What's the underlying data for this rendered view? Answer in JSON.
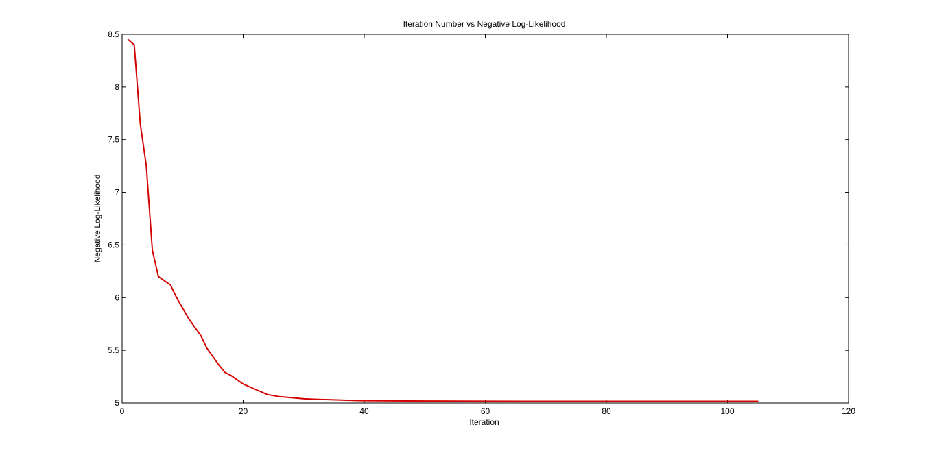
{
  "chart_data": {
    "type": "line",
    "title": "Iteration Number vs Negative Log-Likelihood",
    "xlabel": "Iteration",
    "ylabel": "Negative Log-Likelihood",
    "xlim": [
      0,
      120
    ],
    "ylim": [
      5,
      8.5
    ],
    "xticks": [
      0,
      20,
      40,
      60,
      80,
      100,
      120
    ],
    "yticks": [
      5,
      5.5,
      6,
      6.5,
      7,
      7.5,
      8,
      8.5
    ],
    "xtick_labels": [
      "0",
      "20",
      "40",
      "60",
      "80",
      "100",
      "120"
    ],
    "ytick_labels": [
      "5",
      "5.5",
      "6",
      "6.5",
      "7",
      "7.5",
      "8",
      "8.5"
    ],
    "grid": false,
    "legend": "none",
    "series": [
      {
        "color": "#d40000",
        "x": [
          1,
          2,
          3,
          4,
          5,
          6,
          7,
          8,
          9,
          10,
          11,
          12,
          13,
          14,
          15,
          16,
          17,
          18,
          19,
          20,
          22,
          24,
          26,
          28,
          30,
          32,
          35,
          38,
          40,
          45,
          50,
          55,
          60,
          70,
          80,
          90,
          100,
          105
        ],
        "y": [
          8.45,
          8.4,
          7.65,
          7.25,
          6.45,
          6.2,
          6.16,
          6.12,
          6.0,
          5.9,
          5.8,
          5.72,
          5.64,
          5.52,
          5.44,
          5.36,
          5.29,
          5.26,
          5.22,
          5.18,
          5.13,
          5.08,
          5.06,
          5.05,
          5.04,
          5.035,
          5.03,
          5.025,
          5.022,
          5.02,
          5.019,
          5.018,
          5.017,
          5.016,
          5.016,
          5.016,
          5.016,
          5.016
        ]
      }
    ]
  }
}
